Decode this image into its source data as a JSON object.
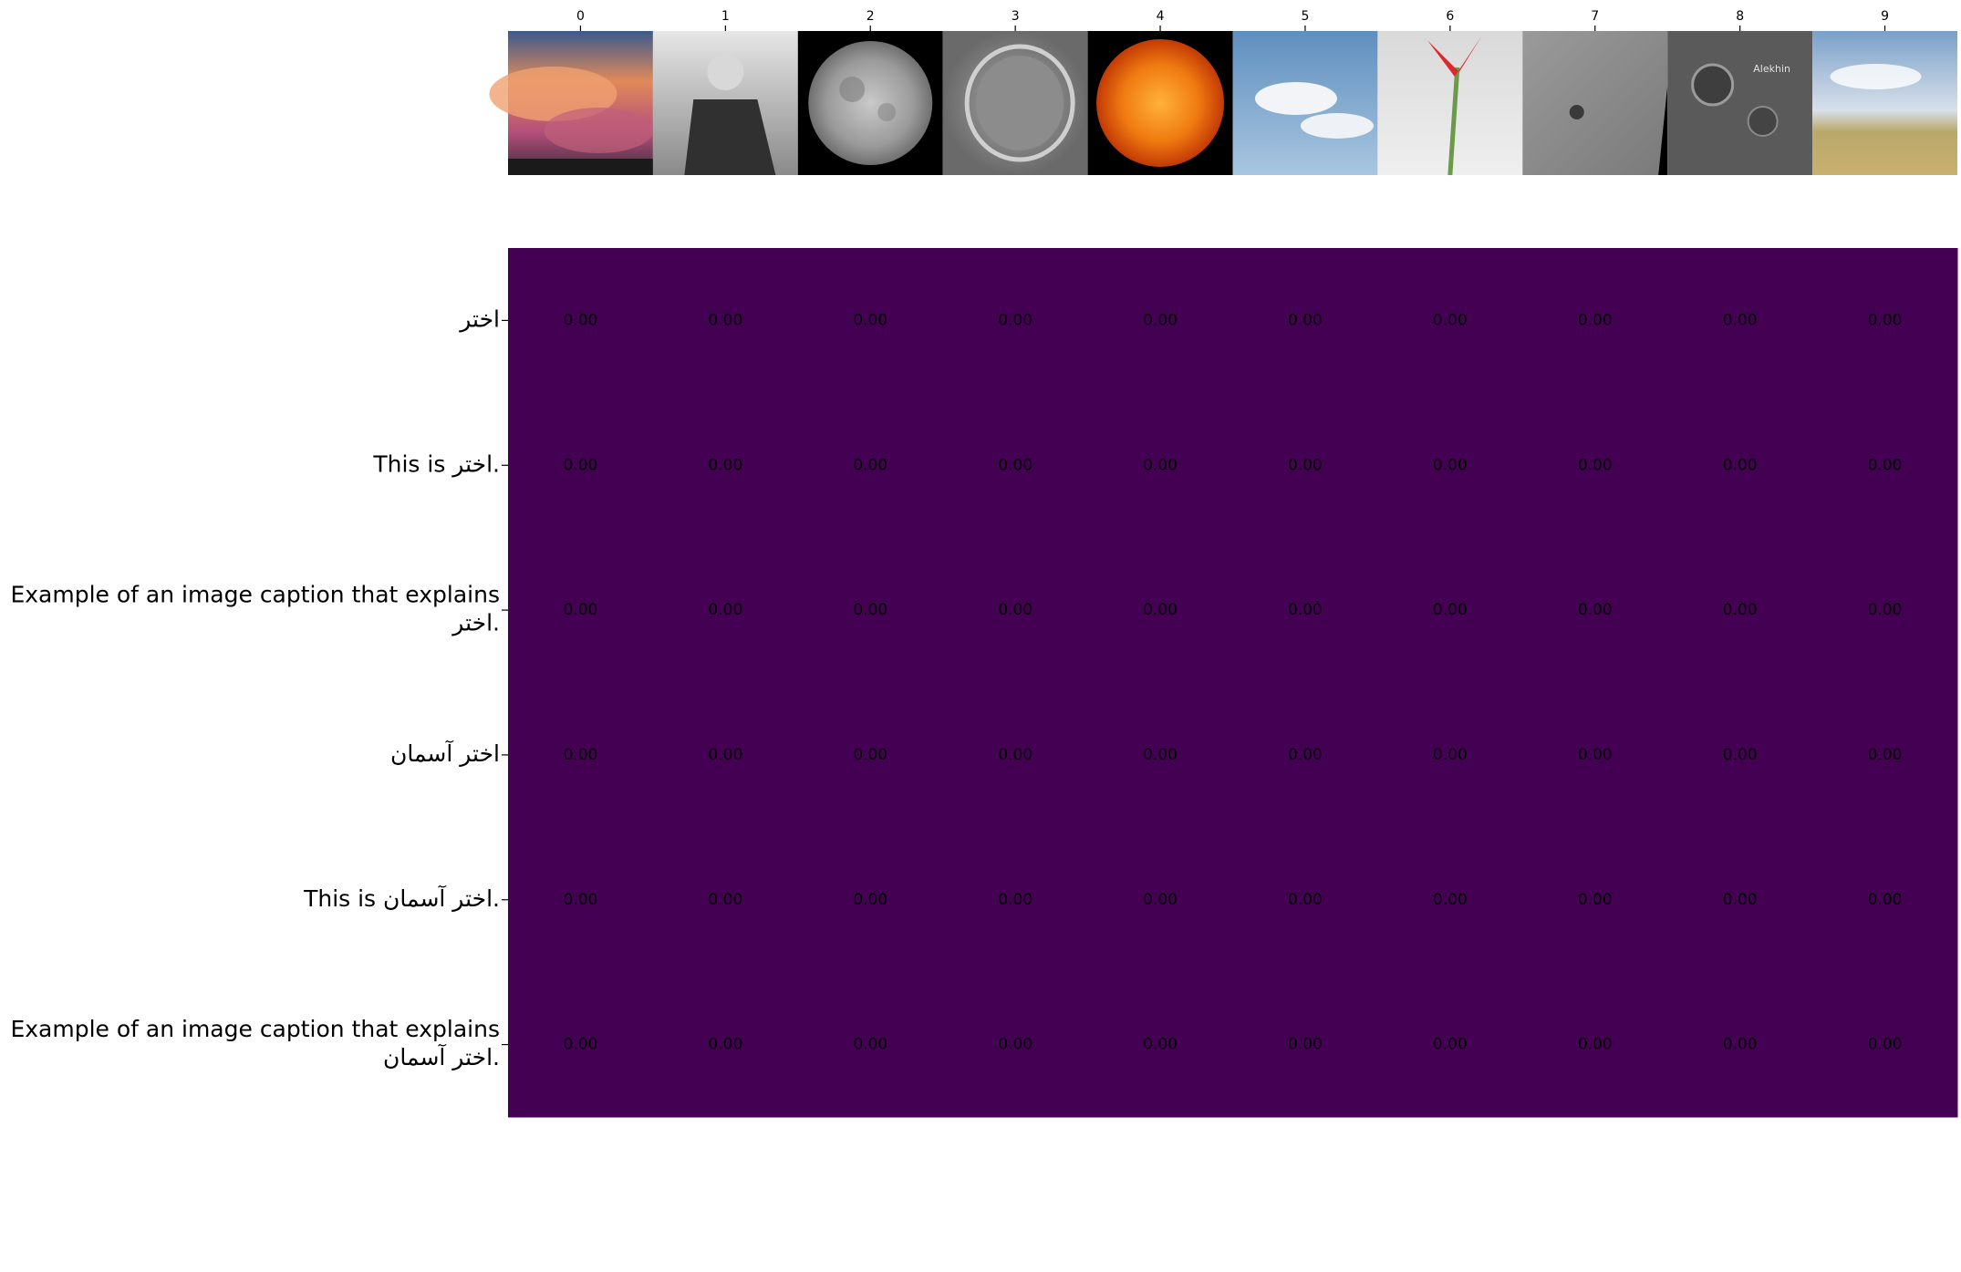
{
  "chart_data": {
    "type": "heatmap",
    "colormap": "viridis",
    "cell_color": "#440154",
    "value_text_color": "#000000",
    "columns": [
      "0",
      "1",
      "2",
      "3",
      "4",
      "5",
      "6",
      "7",
      "8",
      "9"
    ],
    "column_images": [
      {
        "icon": "sunset-clouds-image",
        "subject": "sunset clouds"
      },
      {
        "icon": "portrait-photo-image",
        "subject": "seated man portrait"
      },
      {
        "icon": "full-moon-image",
        "subject": "full moon"
      },
      {
        "icon": "lunar-crater-image",
        "subject": "lunar crater"
      },
      {
        "icon": "sun-image",
        "subject": "sun"
      },
      {
        "icon": "blue-sky-clouds-image",
        "subject": "blue sky with clouds"
      },
      {
        "icon": "red-flower-image",
        "subject": "red flower"
      },
      {
        "icon": "lunar-surface-image",
        "subject": "lunar surface"
      },
      {
        "icon": "lunar-craters-image",
        "subject": "lunar craters",
        "overlay_text": "Alekhin"
      },
      {
        "icon": "grassland-sky-image",
        "subject": "grassland under sky"
      }
    ],
    "rows": [
      [
        "اختر"
      ],
      [
        "This is اختر."
      ],
      [
        "Example of an image caption that explains",
        "اختر."
      ],
      [
        "اختر آسمان"
      ],
      [
        "This is اختر آسمان."
      ],
      [
        "Example of an image caption that explains",
        "اختر آسمان."
      ]
    ],
    "values": [
      [
        0.0,
        0.0,
        0.0,
        0.0,
        0.0,
        0.0,
        0.0,
        0.0,
        0.0,
        0.0
      ],
      [
        0.0,
        0.0,
        0.0,
        0.0,
        0.0,
        0.0,
        0.0,
        0.0,
        0.0,
        0.0
      ],
      [
        0.0,
        0.0,
        0.0,
        0.0,
        0.0,
        0.0,
        0.0,
        0.0,
        0.0,
        0.0
      ],
      [
        0.0,
        0.0,
        0.0,
        0.0,
        0.0,
        0.0,
        0.0,
        0.0,
        0.0,
        0.0
      ],
      [
        0.0,
        0.0,
        0.0,
        0.0,
        0.0,
        0.0,
        0.0,
        0.0,
        0.0,
        0.0
      ],
      [
        0.0,
        0.0,
        0.0,
        0.0,
        0.0,
        0.0,
        0.0,
        0.0,
        0.0,
        0.0
      ]
    ],
    "value_format": "0.00"
  }
}
